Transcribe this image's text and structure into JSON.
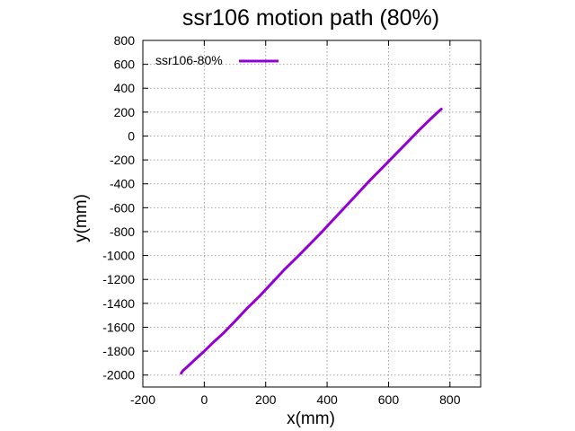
{
  "chart_data": {
    "type": "line",
    "title": "ssr106 motion path (80%)",
    "xlabel": "x(mm)",
    "ylabel": "y(mm)",
    "xlim": [
      -200,
      900
    ],
    "ylim": [
      -2100,
      800
    ],
    "xticks": [
      -200,
      0,
      200,
      400,
      600,
      800
    ],
    "yticks": [
      800,
      600,
      400,
      200,
      0,
      -200,
      -400,
      -600,
      -800,
      -1000,
      -1200,
      -1400,
      -1600,
      -1800,
      -2000
    ],
    "grid": true,
    "legend_position": "top-left",
    "series": [
      {
        "name": "ssr106-80%",
        "color": "#9400d3",
        "x": [
          -75,
          -70,
          -55,
          -30,
          0,
          30,
          60,
          100,
          140,
          180,
          220,
          260,
          300,
          340,
          380,
          420,
          460,
          500,
          540,
          580,
          620,
          660,
          700,
          740,
          765,
          772
        ],
        "y": [
          -1985,
          -1965,
          -1930,
          -1870,
          -1800,
          -1725,
          -1655,
          -1550,
          -1440,
          -1340,
          -1230,
          -1120,
          -1020,
          -915,
          -810,
          -700,
          -590,
          -480,
          -370,
          -265,
          -160,
          -55,
          50,
          150,
          210,
          225
        ]
      }
    ]
  }
}
